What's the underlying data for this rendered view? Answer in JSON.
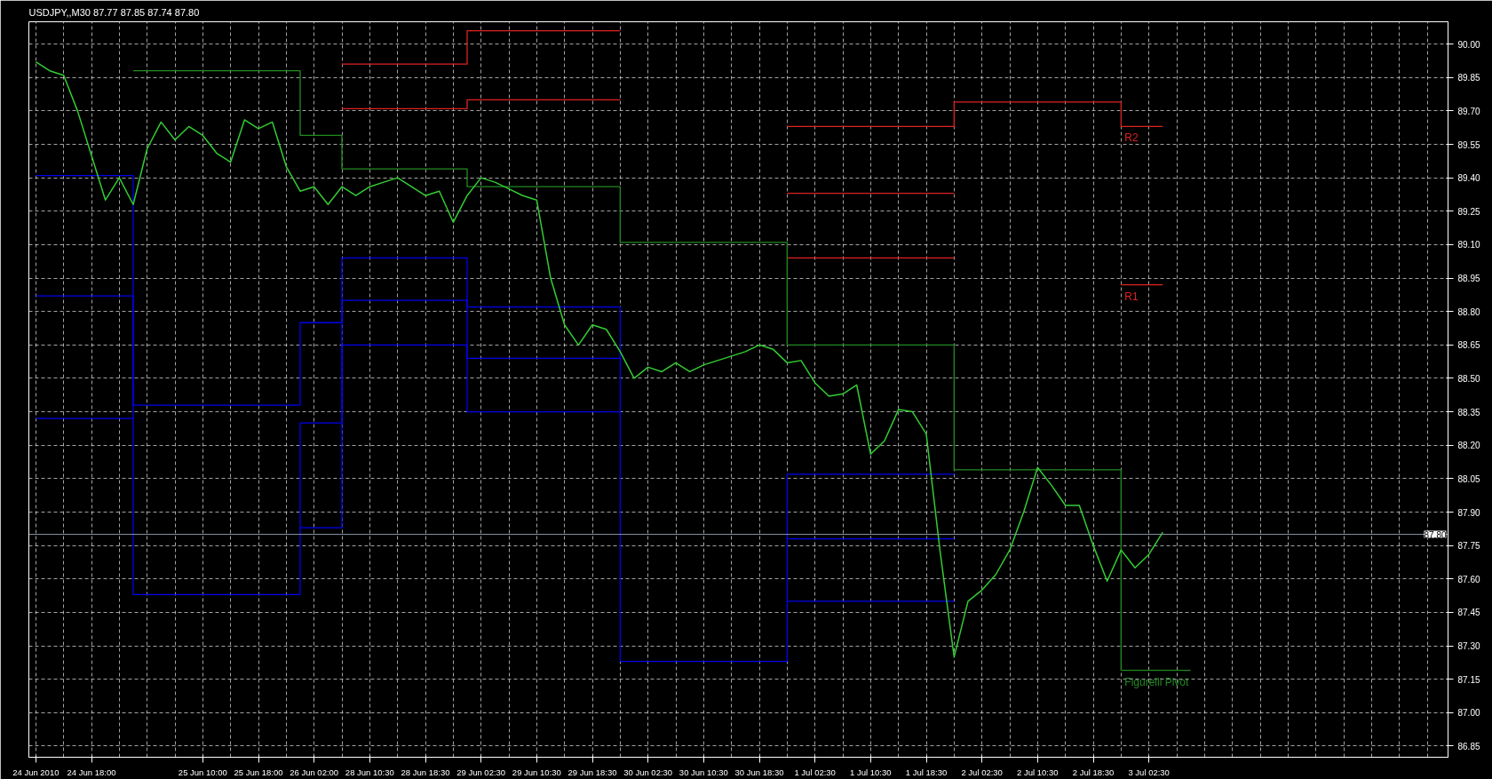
{
  "chart_data": {
    "type": "step",
    "title": "USDJPY,,M30  87.77 87.85 87.74 87.80",
    "categories": [
      "24 Jun 2010",
      null,
      null,
      null,
      "24 Jun 18:00",
      null,
      null,
      null,
      null,
      null,
      null,
      null,
      "25 Jun 10:00",
      null,
      null,
      null,
      "25 Jun 18:00",
      null,
      null,
      null,
      "26 Jun 02:00",
      null,
      null,
      null,
      "28 Jun 10:30",
      null,
      null,
      null,
      "28 Jun 18:30",
      null,
      null,
      null,
      "29 Jun 02:30",
      null,
      null,
      null,
      "29 Jun 10:30",
      null,
      null,
      null,
      "29 Jun 18:30",
      null,
      null,
      null,
      "30 Jun 02:30",
      null,
      null,
      null,
      "30 Jun 10:30",
      null,
      null,
      null,
      "30 Jun 18:30",
      null,
      null,
      null,
      "1 Jul 02:30",
      null,
      null,
      null,
      "1 Jul 10:30",
      null,
      null,
      null,
      "1 Jul 18:30",
      null,
      null,
      null,
      "2 Jul 02:30",
      null,
      null,
      null,
      "2 Jul 10:30",
      null,
      null,
      null,
      "2 Jul 18:30",
      null,
      null,
      null,
      "3 Jul 02:30",
      null,
      null,
      null,
      null,
      null,
      null,
      null,
      null,
      null,
      null,
      null,
      null,
      null,
      null,
      null,
      null,
      null,
      null,
      null,
      null,
      null
    ],
    "ylim": [
      86.8,
      90.1
    ],
    "yticks": [
      {
        "value": 86.85,
        "label": "86.85"
      },
      {
        "value": 87.0,
        "label": "87.00"
      },
      {
        "value": 87.15,
        "label": "87.15"
      },
      {
        "value": 87.3,
        "label": "87.30"
      },
      {
        "value": 87.45,
        "label": "87.45"
      },
      {
        "value": 87.6,
        "label": "87.60"
      },
      {
        "value": 87.75,
        "label": "87.75"
      },
      {
        "value": 87.9,
        "label": "87.90"
      },
      {
        "value": 88.05,
        "label": "88.05"
      },
      {
        "value": 88.2,
        "label": "88.20"
      },
      {
        "value": 88.35,
        "label": "88.35"
      },
      {
        "value": 88.5,
        "label": "88.50"
      },
      {
        "value": 88.65,
        "label": "88.65"
      },
      {
        "value": 88.8,
        "label": "88.80"
      },
      {
        "value": 88.95,
        "label": "88.95"
      },
      {
        "value": 89.1,
        "label": "89.10"
      },
      {
        "value": 89.25,
        "label": "89.25"
      },
      {
        "value": 89.4,
        "label": "89.40"
      },
      {
        "value": 89.55,
        "label": "89.55"
      },
      {
        "value": 89.7,
        "label": "89.70"
      },
      {
        "value": 89.85,
        "label": "89.85"
      },
      {
        "value": 90.0,
        "label": "90.00"
      }
    ],
    "grid": true,
    "line_style": "solid",
    "series": [
      {
        "color": "#0000ee",
        "values": [
          89.41,
          null,
          null,
          null,
          null,
          null,
          null,
          88.38,
          null,
          null,
          null,
          null,
          null,
          null,
          null,
          null,
          null,
          null,
          null,
          88.75,
          null,
          null,
          89.04,
          null,
          null,
          null,
          null,
          null,
          null,
          null,
          null,
          88.82,
          null,
          null,
          null,
          null,
          null,
          null,
          null,
          null,
          null,
          null,
          87.23,
          null,
          null,
          null,
          null,
          null,
          null,
          null,
          null,
          null,
          null,
          null,
          88.07,
          null,
          null,
          null,
          null,
          null,
          null,
          null,
          null,
          null,
          null,
          null,
          88.07,
          null,
          null,
          null,
          null,
          null,
          null,
          null,
          null,
          null,
          null,
          null,
          null,
          null,
          null,
          null,
          null,
          null,
          null,
          null,
          null,
          null,
          null,
          null,
          null,
          null,
          null,
          null,
          null,
          null,
          null,
          null,
          null,
          null,
          null,
          null
        ]
      },
      {
        "color": "#0000ee",
        "values": [
          88.87,
          null,
          null,
          null,
          null,
          null,
          null,
          87.53,
          null,
          null,
          null,
          null,
          null,
          null,
          null,
          null,
          null,
          null,
          null,
          88.3,
          null,
          null,
          88.85,
          null,
          null,
          null,
          null,
          null,
          null,
          null,
          null,
          88.59,
          null,
          null,
          null,
          null,
          null,
          null,
          null,
          null,
          null,
          null,
          88.59,
          null,
          null,
          null,
          null,
          null,
          null,
          null,
          null,
          null,
          null,
          null,
          null,
          null,
          null,
          null,
          null,
          null,
          null,
          null,
          null,
          null,
          null,
          null,
          null,
          null,
          null,
          null,
          null,
          null,
          null,
          null,
          null,
          null,
          null,
          null,
          null,
          null,
          null,
          null,
          null,
          null,
          null,
          null,
          null,
          null,
          null,
          null,
          null,
          null,
          null,
          null,
          null,
          null,
          null,
          null,
          null,
          null,
          null,
          null
        ]
      },
      {
        "color": "#0000ee",
        "values": [
          null,
          null,
          null,
          null,
          null,
          null,
          null,
          null,
          null,
          null,
          null,
          null,
          null,
          null,
          null,
          null,
          null,
          null,
          null,
          null,
          null,
          null,
          null,
          null,
          null,
          null,
          null,
          null,
          null,
          null,
          null,
          null,
          null,
          null,
          null,
          null,
          null,
          null,
          null,
          null,
          null,
          null,
          null,
          null,
          null,
          null,
          null,
          null,
          null,
          null,
          null,
          null,
          null,
          null,
          87.78,
          null,
          null,
          null,
          null,
          null,
          null,
          null,
          null,
          null,
          null,
          null,
          87.78,
          null,
          null,
          null,
          null,
          null,
          null,
          null,
          null,
          null,
          null,
          null,
          null,
          null,
          null,
          null,
          null,
          null,
          null,
          null,
          null,
          null,
          null,
          null,
          null,
          null,
          null,
          null,
          null,
          null,
          null,
          null,
          null,
          null,
          null,
          null
        ]
      },
      {
        "color": "#0000ee",
        "values": [
          88.32,
          null,
          null,
          null,
          null,
          null,
          null,
          88.32,
          null,
          null,
          null,
          null,
          null,
          null,
          null,
          null,
          null,
          null,
          null,
          null,
          null,
          null,
          null,
          null,
          null,
          null,
          null,
          null,
          null,
          null,
          null,
          null,
          null,
          null,
          null,
          null,
          null,
          null,
          null,
          null,
          null,
          null,
          null,
          null,
          null,
          null,
          null,
          null,
          null,
          null,
          null,
          null,
          null,
          null,
          null,
          null,
          null,
          null,
          null,
          null,
          null,
          null,
          null,
          null,
          null,
          null,
          null,
          null,
          null,
          null,
          null,
          null,
          null,
          null,
          null,
          null,
          null,
          null,
          null,
          null,
          null,
          null,
          null,
          null,
          null,
          null,
          null,
          null,
          null,
          null,
          null,
          null,
          null,
          null,
          null,
          null,
          null,
          null,
          null,
          null,
          null,
          null
        ]
      },
      {
        "color": "#0000ee",
        "values": [
          null,
          null,
          null,
          null,
          null,
          null,
          null,
          null,
          null,
          null,
          null,
          null,
          null,
          null,
          null,
          null,
          null,
          null,
          null,
          87.83,
          null,
          null,
          88.65,
          null,
          null,
          null,
          null,
          null,
          null,
          null,
          null,
          88.35,
          null,
          null,
          null,
          null,
          null,
          null,
          null,
          null,
          null,
          null,
          88.35,
          null,
          null,
          null,
          null,
          null,
          null,
          null,
          null,
          null,
          null,
          null,
          null,
          null,
          null,
          null,
          null,
          null,
          null,
          null,
          null,
          null,
          null,
          null,
          null,
          null,
          null,
          null,
          null,
          null,
          null,
          null,
          null,
          null,
          null,
          null,
          null,
          null,
          null,
          null,
          null,
          null,
          null,
          null,
          null,
          null,
          null,
          null,
          null,
          null,
          null,
          null,
          null,
          null,
          null,
          null,
          null,
          null,
          null,
          null
        ]
      },
      {
        "color": "#0000ee",
        "values": [
          null,
          null,
          null,
          null,
          null,
          null,
          null,
          null,
          null,
          null,
          null,
          null,
          null,
          null,
          null,
          null,
          null,
          null,
          null,
          null,
          null,
          null,
          null,
          null,
          null,
          null,
          null,
          null,
          null,
          null,
          null,
          null,
          null,
          null,
          null,
          null,
          null,
          null,
          null,
          null,
          null,
          null,
          null,
          null,
          null,
          null,
          null,
          null,
          null,
          null,
          null,
          null,
          null,
          null,
          87.5,
          null,
          null,
          null,
          null,
          null,
          null,
          null,
          null,
          null,
          null,
          null,
          87.5,
          null,
          null,
          null,
          null,
          null,
          null,
          null,
          null,
          null,
          null,
          null,
          null,
          null,
          null,
          null,
          null,
          null,
          null,
          null,
          null,
          null,
          null,
          null,
          null,
          null,
          null,
          null,
          null,
          null,
          null,
          null,
          null,
          null,
          null,
          null
        ]
      },
      {
        "color": "#dd2222",
        "values": [
          null,
          null,
          null,
          null,
          null,
          null,
          null,
          null,
          null,
          null,
          null,
          null,
          null,
          null,
          null,
          null,
          null,
          null,
          null,
          null,
          null,
          null,
          89.71,
          null,
          null,
          null,
          null,
          null,
          null,
          null,
          null,
          89.75,
          null,
          null,
          null,
          null,
          null,
          null,
          null,
          null,
          null,
          null,
          89.75,
          null,
          null,
          null,
          null,
          null,
          null,
          null,
          null,
          null,
          null,
          null,
          null,
          null,
          null,
          null,
          null,
          null,
          null,
          null,
          null,
          null,
          null,
          null,
          null,
          null,
          null,
          null,
          null,
          null,
          null,
          null,
          null,
          null,
          null,
          null,
          null,
          null,
          null,
          null,
          null,
          null,
          null,
          null,
          null,
          null,
          null,
          null,
          null,
          null,
          null,
          null,
          null,
          null,
          null,
          null,
          null,
          null,
          null,
          null
        ]
      },
      {
        "color": "#dd2222",
        "values": [
          null,
          null,
          null,
          null,
          null,
          null,
          null,
          null,
          null,
          null,
          null,
          null,
          null,
          null,
          null,
          null,
          null,
          null,
          null,
          null,
          null,
          null,
          89.91,
          null,
          null,
          null,
          null,
          null,
          null,
          null,
          null,
          90.06,
          null,
          null,
          null,
          null,
          null,
          null,
          null,
          null,
          null,
          null,
          90.06,
          null,
          null,
          null,
          null,
          null,
          null,
          null,
          null,
          null,
          null,
          null,
          null,
          null,
          null,
          null,
          null,
          null,
          null,
          null,
          null,
          null,
          null,
          null,
          null,
          null,
          null,
          null,
          null,
          null,
          null,
          null,
          null,
          null,
          null,
          null,
          null,
          null,
          null,
          null,
          null,
          null,
          null,
          null,
          null,
          null,
          null,
          null,
          null,
          null,
          null,
          null,
          null,
          null,
          null,
          null,
          null,
          null,
          null,
          null
        ]
      },
      {
        "color": "#dd2222",
        "values": [
          null,
          null,
          null,
          null,
          null,
          null,
          null,
          null,
          null,
          null,
          null,
          null,
          null,
          null,
          null,
          null,
          null,
          null,
          null,
          null,
          null,
          null,
          null,
          null,
          null,
          null,
          null,
          null,
          null,
          null,
          null,
          null,
          null,
          null,
          null,
          null,
          null,
          null,
          null,
          null,
          null,
          null,
          null,
          null,
          null,
          null,
          null,
          null,
          null,
          null,
          null,
          null,
          null,
          null,
          89.04,
          null,
          null,
          null,
          null,
          null,
          null,
          null,
          null,
          null,
          null,
          null,
          89.04,
          null,
          null,
          null,
          null,
          null,
          null,
          null,
          null,
          null,
          null,
          null,
          null,
          null,
          null,
          null,
          null,
          null,
          null,
          null,
          null,
          null,
          null,
          null,
          null,
          null,
          null,
          null,
          null,
          null,
          null,
          null,
          null,
          null,
          null,
          null
        ]
      },
      {
        "color": "#dd2222",
        "values": [
          null,
          null,
          null,
          null,
          null,
          null,
          null,
          null,
          null,
          null,
          null,
          null,
          null,
          null,
          null,
          null,
          null,
          null,
          null,
          null,
          null,
          null,
          null,
          null,
          null,
          null,
          null,
          null,
          null,
          null,
          null,
          null,
          null,
          null,
          null,
          null,
          null,
          null,
          null,
          null,
          null,
          null,
          null,
          null,
          null,
          null,
          null,
          null,
          null,
          null,
          null,
          null,
          null,
          null,
          89.33,
          null,
          null,
          null,
          null,
          null,
          null,
          null,
          null,
          null,
          null,
          null,
          89.33,
          null,
          null,
          null,
          null,
          null,
          null,
          null,
          null,
          null,
          null,
          null,
          null,
          null,
          null,
          null,
          null,
          null,
          null,
          null,
          null,
          null,
          null,
          null,
          null,
          null,
          null,
          null,
          null,
          null,
          null,
          null,
          null,
          null,
          null,
          null
        ]
      },
      {
        "color": "#dd2222",
        "values": [
          null,
          null,
          null,
          null,
          null,
          null,
          null,
          null,
          null,
          null,
          null,
          null,
          null,
          null,
          null,
          null,
          null,
          null,
          null,
          null,
          null,
          null,
          null,
          null,
          null,
          null,
          null,
          null,
          null,
          null,
          null,
          null,
          null,
          null,
          null,
          null,
          null,
          null,
          null,
          null,
          null,
          null,
          null,
          null,
          null,
          null,
          null,
          null,
          null,
          null,
          null,
          null,
          null,
          null,
          89.63,
          null,
          null,
          null,
          null,
          null,
          null,
          null,
          null,
          null,
          null,
          null,
          89.74,
          null,
          null,
          null,
          null,
          null,
          null,
          null,
          null,
          null,
          null,
          null,
          89.63,
          null,
          null,
          89.63,
          null,
          null,
          null,
          null,
          null,
          null,
          null,
          null,
          null,
          null,
          null,
          null,
          null,
          null,
          null,
          null,
          null,
          null,
          null,
          null
        ]
      },
      {
        "color": "#dd2222",
        "values": [
          null,
          null,
          null,
          null,
          null,
          null,
          null,
          null,
          null,
          null,
          null,
          null,
          null,
          null,
          null,
          null,
          null,
          null,
          null,
          null,
          null,
          null,
          null,
          null,
          null,
          null,
          null,
          null,
          null,
          null,
          null,
          null,
          null,
          null,
          null,
          null,
          null,
          null,
          null,
          null,
          null,
          null,
          null,
          null,
          null,
          null,
          null,
          null,
          null,
          null,
          null,
          null,
          null,
          null,
          null,
          null,
          null,
          null,
          null,
          null,
          null,
          null,
          null,
          null,
          null,
          null,
          null,
          null,
          null,
          null,
          null,
          null,
          null,
          null,
          null,
          null,
          null,
          null,
          88.92,
          null,
          null,
          88.92,
          null,
          null,
          null,
          null,
          null,
          null,
          null,
          null,
          null,
          null,
          null,
          null,
          null,
          null,
          null,
          null,
          null,
          null,
          null,
          null
        ]
      },
      {
        "color": "#228b22",
        "values": [
          null,
          null,
          null,
          null,
          null,
          null,
          null,
          89.88,
          null,
          null,
          null,
          null,
          null,
          null,
          null,
          null,
          null,
          null,
          null,
          89.59,
          null,
          null,
          89.44,
          null,
          null,
          null,
          null,
          null,
          null,
          null,
          null,
          89.36,
          null,
          null,
          null,
          null,
          null,
          null,
          null,
          null,
          null,
          null,
          89.11,
          null,
          null,
          null,
          null,
          null,
          null,
          null,
          null,
          null,
          null,
          null,
          88.65,
          null,
          null,
          null,
          null,
          null,
          null,
          null,
          null,
          null,
          null,
          null,
          88.09,
          null,
          null,
          null,
          null,
          null,
          null,
          null,
          null,
          null,
          null,
          null,
          87.19,
          null,
          null,
          null,
          null,
          87.19,
          null,
          null,
          null,
          null,
          null,
          null,
          null,
          null,
          null,
          null,
          null,
          null,
          null,
          null,
          null,
          null,
          null,
          null
        ]
      },
      {
        "type": "line",
        "color": "#33cc33",
        "values": [
          89.92,
          89.88,
          89.86,
          89.7,
          89.5,
          89.3,
          89.4,
          89.28,
          89.53,
          89.65,
          89.57,
          89.63,
          89.59,
          89.51,
          89.47,
          89.66,
          89.62,
          89.65,
          89.45,
          89.34,
          89.36,
          89.28,
          89.36,
          89.32,
          89.36,
          89.38,
          89.4,
          89.36,
          89.32,
          89.34,
          89.2,
          89.32,
          89.4,
          89.38,
          89.35,
          89.32,
          89.3,
          88.95,
          88.74,
          88.65,
          88.74,
          88.72,
          88.62,
          88.5,
          88.55,
          88.53,
          88.57,
          88.53,
          88.56,
          88.58,
          88.6,
          88.62,
          88.65,
          88.63,
          88.57,
          88.58,
          88.48,
          88.42,
          88.43,
          88.47,
          88.16,
          88.22,
          88.36,
          88.35,
          88.25,
          87.72,
          87.25,
          87.5,
          87.55,
          87.62,
          87.73,
          87.9,
          88.1,
          88.02,
          87.93,
          87.93,
          87.75,
          87.59,
          87.73,
          87.65,
          87.71,
          87.81,
          null,
          null,
          null,
          null,
          null,
          null,
          null,
          null,
          null,
          null,
          null,
          null,
          null,
          null,
          null,
          null,
          null,
          null,
          null,
          null
        ]
      }
    ],
    "ref_lines": [
      {
        "axis": "y",
        "value": 87.8,
        "label": "87.80",
        "color": "#8899aa"
      }
    ],
    "annotations": [
      {
        "text": "R2",
        "y": 89.63
      },
      {
        "text": "R1",
        "y": 88.92
      },
      {
        "text": "Figurelli Pivot",
        "y": 87.19
      }
    ]
  }
}
